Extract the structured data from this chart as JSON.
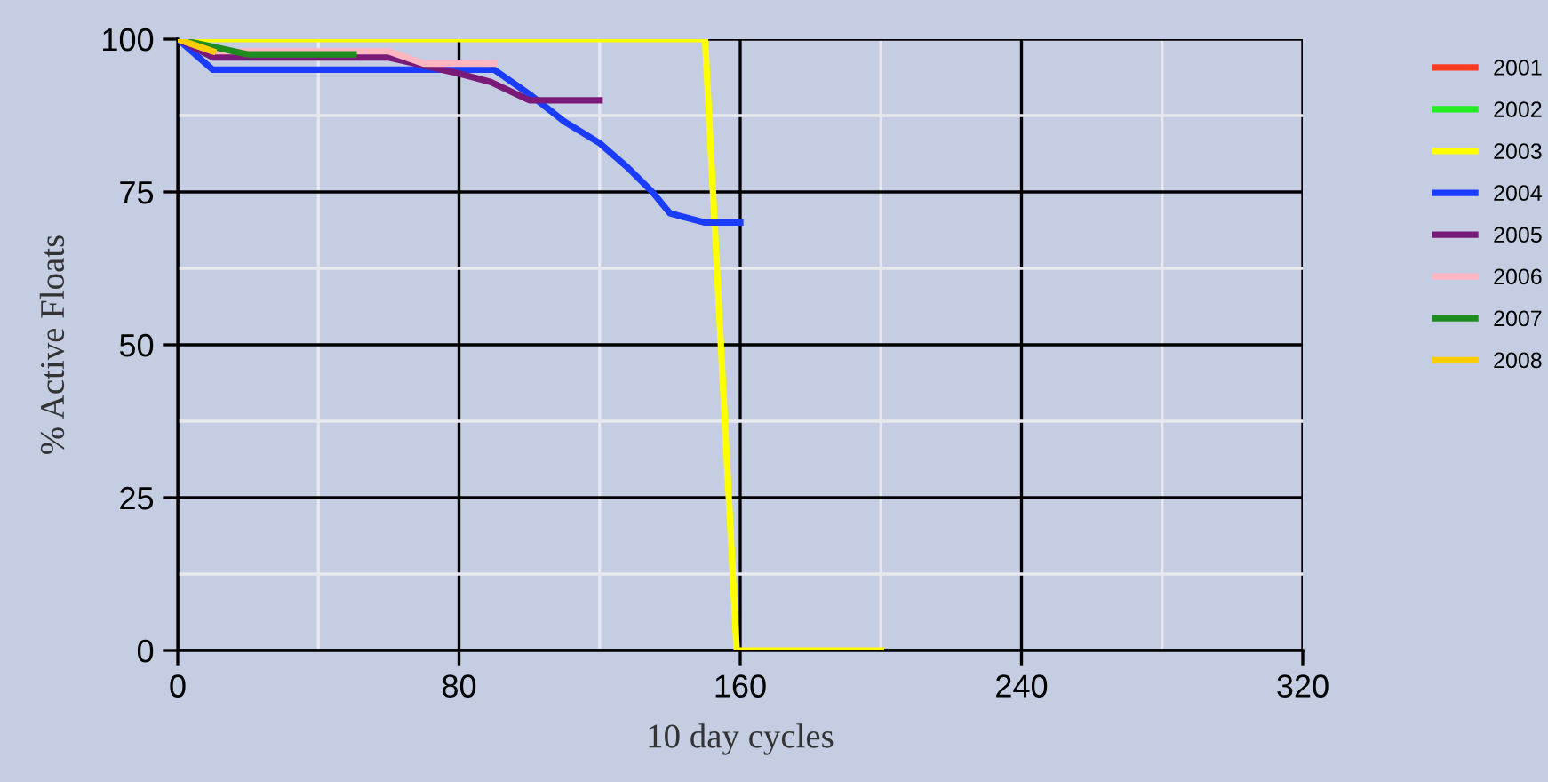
{
  "chart_data": {
    "type": "line",
    "xlabel": "10 day cycles",
    "ylabel": "% Active Floats",
    "xlim": [
      0,
      320
    ],
    "ylim": [
      0,
      100
    ],
    "xticks": [
      0,
      {
        "value": 40,
        "label": null
      },
      80,
      {
        "value": 120,
        "label": null
      },
      160,
      {
        "value": 200,
        "label": null
      },
      240,
      {
        "value": 280,
        "label": null
      },
      320
    ],
    "yticks": [
      0,
      {
        "value": 12.5,
        "label": null
      },
      25,
      {
        "value": 37.5,
        "label": null
      },
      50,
      {
        "value": 62.5,
        "label": null
      },
      75,
      {
        "value": 87.5,
        "label": null
      },
      100
    ],
    "grid": true,
    "legend": "right",
    "marker": "none",
    "line_style": "solid",
    "series": [
      {
        "name": "2001",
        "color": "#ff3b1f"
      },
      {
        "name": "2002",
        "color": "#22ee22"
      },
      {
        "name": "2003",
        "color": "#ffff00",
        "x": [
          0,
          150,
          159,
          200
        ],
        "values": [
          100,
          100,
          0,
          0
        ]
      },
      {
        "name": "2004",
        "color": "#1a3cff",
        "x": [
          0,
          10,
          90,
          100,
          110,
          120,
          128,
          135,
          140,
          150,
          160
        ],
        "values": [
          100,
          95,
          95,
          91,
          86.5,
          83,
          79,
          75,
          71.5,
          70,
          70
        ]
      },
      {
        "name": "2005",
        "color": "#7a1a78",
        "x": [
          0,
          10,
          60,
          79,
          89,
          100,
          120
        ],
        "values": [
          100,
          97,
          97,
          94.5,
          93,
          90,
          90
        ]
      },
      {
        "name": "2006",
        "color": "#ffb6c1",
        "x": [
          0,
          10,
          60,
          70,
          90
        ],
        "values": [
          100,
          98,
          98,
          96,
          96
        ]
      },
      {
        "name": "2007",
        "color": "#1e8c1e",
        "x": [
          0,
          20,
          50
        ],
        "values": [
          100,
          97.5,
          97.5
        ]
      },
      {
        "name": "2008",
        "color": "#ffcc00",
        "x": [
          0,
          10
        ],
        "values": [
          100,
          98
        ]
      }
    ]
  }
}
